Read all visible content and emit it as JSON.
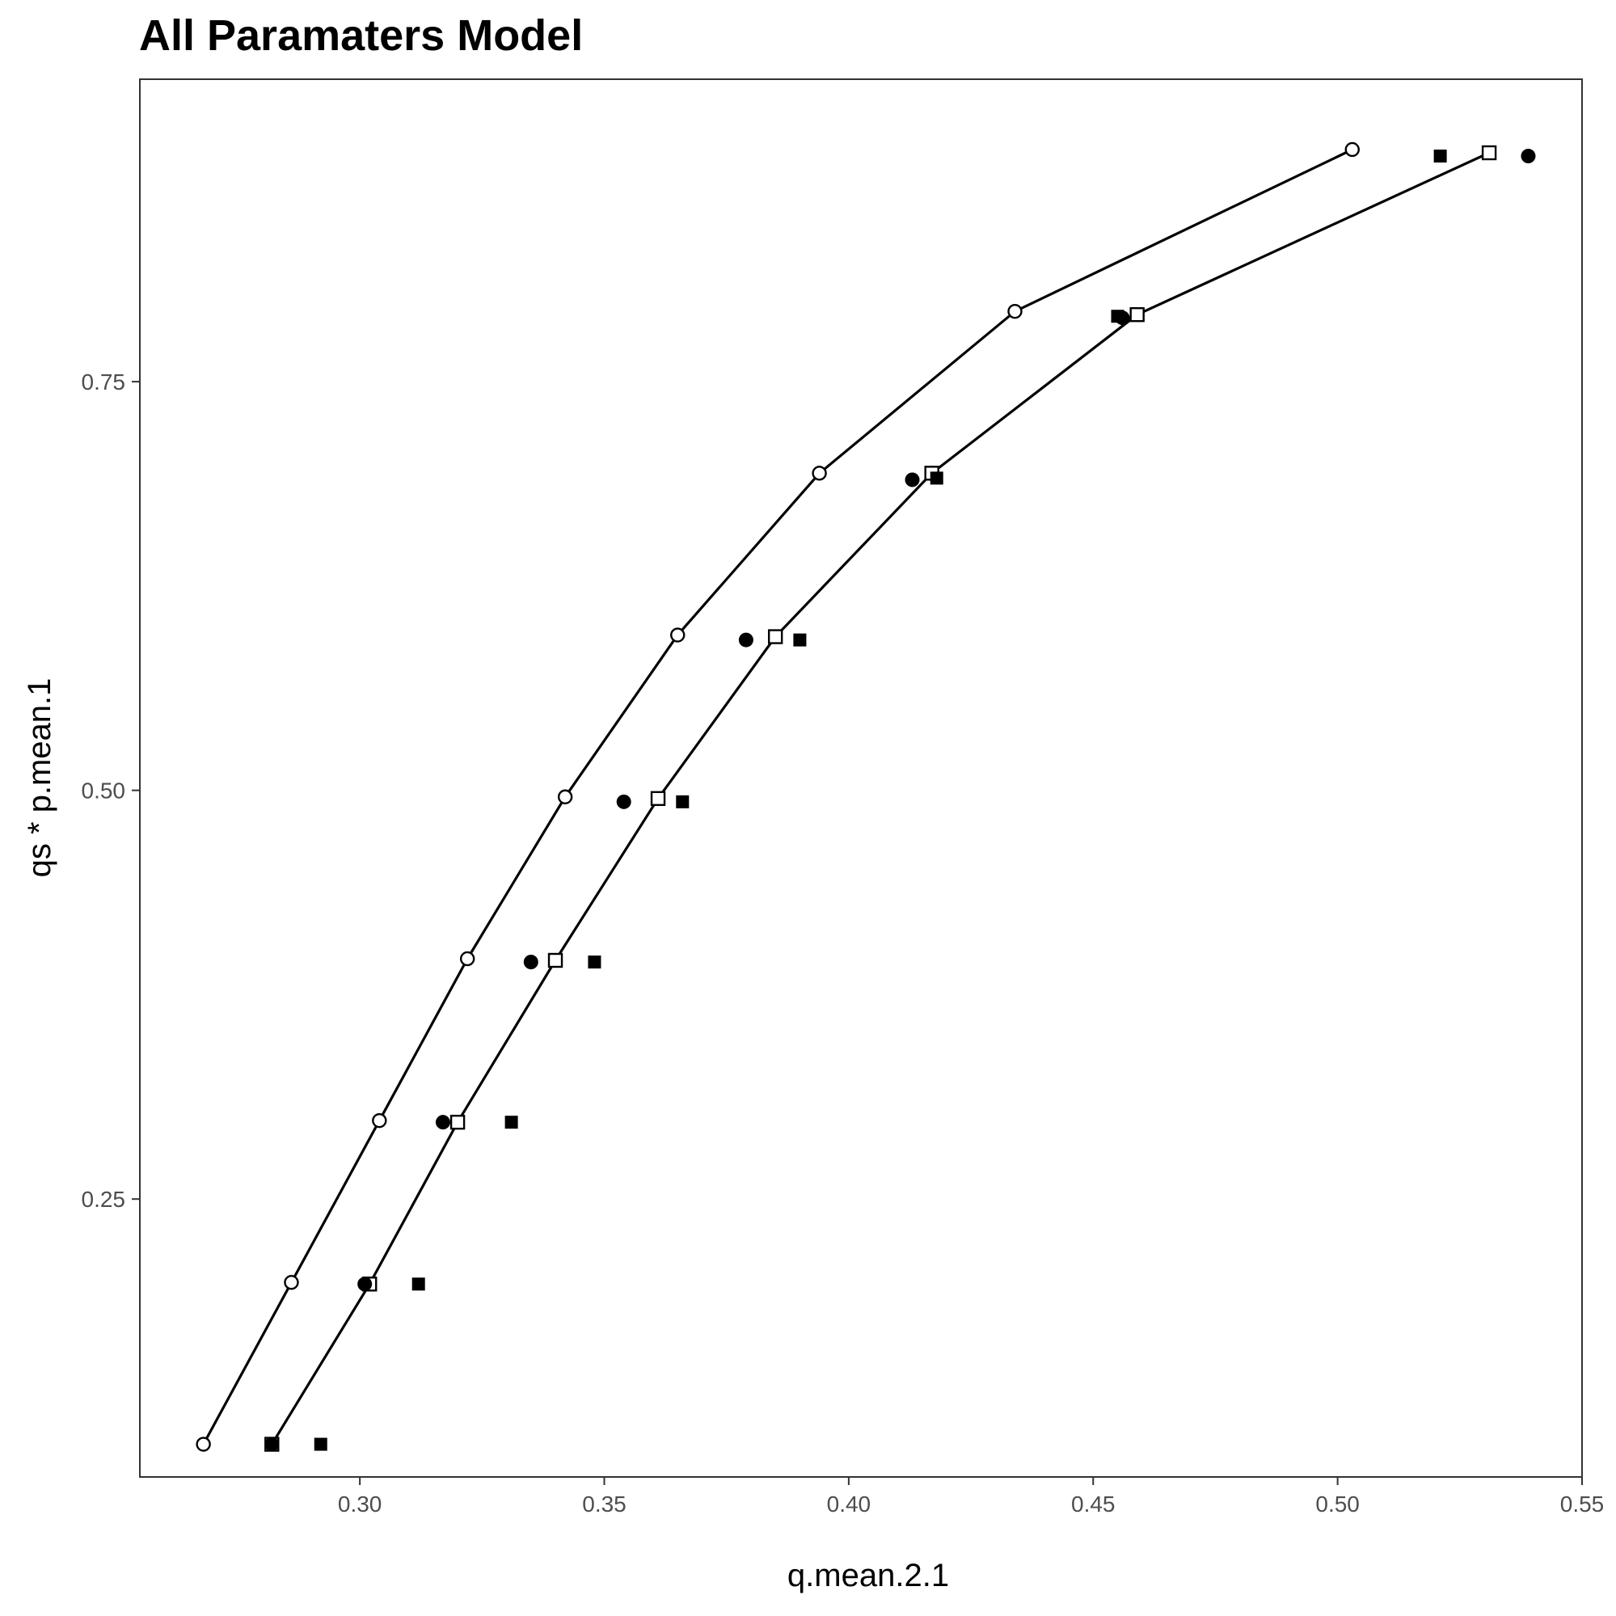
{
  "chart_data": {
    "type": "scatter",
    "title": "All Paramaters Model",
    "xlabel": "q.mean.2.1",
    "ylabel": "qs * p.mean.1",
    "xlim": [
      0.255,
      0.55
    ],
    "ylim": [
      0.08,
      0.935
    ],
    "xticks": [
      0.3,
      0.35,
      0.4,
      0.45,
      0.5,
      0.55
    ],
    "xtick_labels": [
      "0.30",
      "0.35",
      "0.40",
      "0.45",
      "0.50",
      "0.55"
    ],
    "yticks": [
      0.25,
      0.5,
      0.75
    ],
    "ytick_labels": [
      "0.25",
      "0.50",
      "0.75"
    ],
    "grid": false,
    "legend": "none",
    "series": [
      {
        "marker": "open-circle",
        "line": true,
        "points": [
          [
            0.268,
            0.1
          ],
          [
            0.286,
            0.199
          ],
          [
            0.304,
            0.298
          ],
          [
            0.322,
            0.397
          ],
          [
            0.342,
            0.496
          ],
          [
            0.365,
            0.595
          ],
          [
            0.394,
            0.694
          ],
          [
            0.434,
            0.793
          ],
          [
            0.503,
            0.892
          ]
        ]
      },
      {
        "marker": "open-square",
        "line": true,
        "points": [
          [
            0.282,
            0.1
          ],
          [
            0.302,
            0.198
          ],
          [
            0.32,
            0.297
          ],
          [
            0.34,
            0.396
          ],
          [
            0.361,
            0.495
          ],
          [
            0.385,
            0.594
          ],
          [
            0.417,
            0.694
          ],
          [
            0.459,
            0.791
          ],
          [
            0.531,
            0.89
          ]
        ]
      },
      {
        "marker": "filled-circle",
        "line": false,
        "points": [
          [
            0.282,
            0.1
          ],
          [
            0.301,
            0.198
          ],
          [
            0.317,
            0.297
          ],
          [
            0.335,
            0.395
          ],
          [
            0.354,
            0.493
          ],
          [
            0.379,
            0.592
          ],
          [
            0.413,
            0.69
          ],
          [
            0.456,
            0.789
          ],
          [
            0.539,
            0.888
          ]
        ]
      },
      {
        "marker": "filled-square",
        "line": false,
        "points": [
          [
            0.292,
            0.1
          ],
          [
            0.312,
            0.198
          ],
          [
            0.331,
            0.297
          ],
          [
            0.348,
            0.395
          ],
          [
            0.366,
            0.493
          ],
          [
            0.39,
            0.592
          ],
          [
            0.418,
            0.691
          ],
          [
            0.455,
            0.79
          ],
          [
            0.521,
            0.888
          ]
        ]
      }
    ]
  }
}
